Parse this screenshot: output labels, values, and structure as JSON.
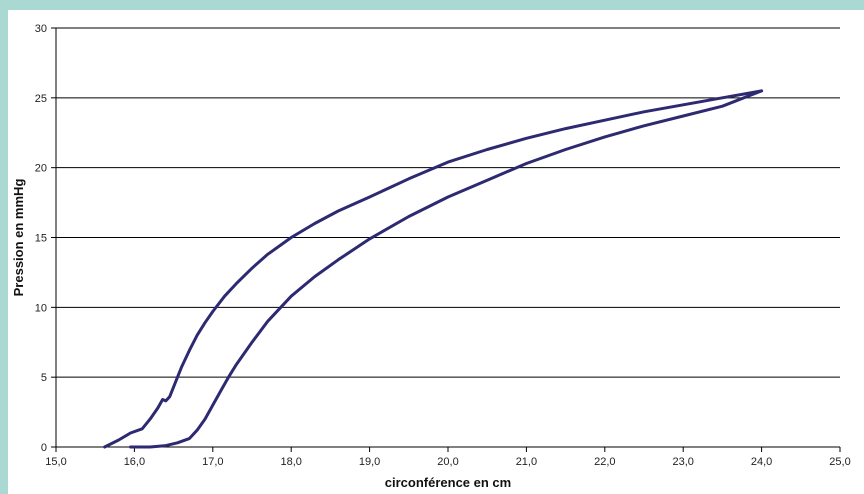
{
  "colors": {
    "page_background": "#a9d9d2",
    "plot_background": "#ffffff",
    "series_line": "#2e2a72",
    "gridline": "#000000"
  },
  "chart_data": {
    "type": "line",
    "title": "",
    "xlabel": "circonférence en cm",
    "ylabel": "Pression en mmHg",
    "xlim": [
      15.0,
      25.0
    ],
    "ylim": [
      0,
      30
    ],
    "x_ticks": [
      "15,0",
      "16,0",
      "17,0",
      "18,0",
      "19,0",
      "20,0",
      "21,0",
      "22,0",
      "23,0",
      "24,0",
      "25,0"
    ],
    "y_ticks": [
      "0",
      "5",
      "10",
      "15",
      "20",
      "25",
      "30"
    ],
    "grid": "horizontal",
    "legend": "none",
    "series": [
      {
        "x": [
          15.62,
          15.8,
          15.95,
          16.1,
          16.2,
          16.3,
          16.36,
          16.4,
          16.45,
          16.5,
          16.6,
          16.7,
          16.8,
          16.9,
          17.0,
          17.15,
          17.3,
          17.5,
          17.7,
          17.9,
          18.0,
          18.3,
          18.6,
          19.0,
          19.5,
          20.0,
          20.5,
          21.0,
          21.5,
          22.0,
          22.5,
          23.0,
          23.5,
          24.0
        ],
        "y": [
          0,
          0.5,
          1.0,
          1.3,
          2.0,
          2.8,
          3.4,
          3.3,
          3.6,
          4.3,
          5.7,
          6.9,
          8.0,
          8.9,
          9.7,
          10.8,
          11.7,
          12.8,
          13.8,
          14.6,
          15.0,
          16.0,
          16.9,
          17.9,
          19.2,
          20.4,
          21.3,
          22.1,
          22.8,
          23.4,
          24.0,
          24.5,
          25.0,
          25.5
        ]
      },
      {
        "x": [
          15.95,
          16.2,
          16.4,
          16.55,
          16.7,
          16.8,
          16.9,
          17.0,
          17.1,
          17.2,
          17.3,
          17.5,
          17.7,
          18.0,
          18.3,
          18.6,
          19.0,
          19.5,
          20.0,
          20.5,
          21.0,
          21.5,
          22.0,
          22.5,
          23.0,
          23.5,
          24.0
        ],
        "y": [
          0,
          0,
          0.1,
          0.3,
          0.6,
          1.2,
          2.0,
          3.0,
          4.0,
          5.0,
          5.9,
          7.5,
          9.0,
          10.8,
          12.2,
          13.4,
          14.9,
          16.5,
          17.9,
          19.1,
          20.3,
          21.3,
          22.2,
          23.0,
          23.7,
          24.4,
          25.5
        ]
      }
    ]
  }
}
